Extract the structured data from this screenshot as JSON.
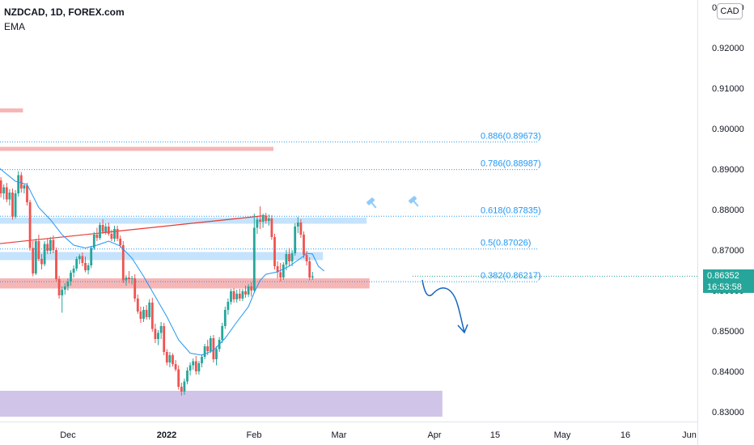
{
  "header": {
    "symbol": "NZDCAD, 1D, FOREX.com",
    "indicator": "EMA",
    "currency": "CAD"
  },
  "price_tag": {
    "price": "0.86352",
    "countdown": "16:53:58",
    "color": "#26a69a"
  },
  "colors": {
    "up": "#26a69a",
    "down": "#ef5350",
    "ema": "#2196f3",
    "trendline": "#e53935",
    "fib": "#2196f3",
    "resistance_zone": "#f5a9a9",
    "support_zone": "#bbdefb",
    "demand_zone": "#d1c4e9",
    "projection": "#1565c0"
  },
  "chart_data": {
    "type": "candlestick",
    "symbol": "NZDCAD",
    "timeframe": "1D",
    "y_axis": {
      "ticks": [
        "0.83000",
        "0.84000",
        "0.85000",
        "0.86000",
        "0.87000",
        "0.88000",
        "0.89000",
        "0.90000",
        "0.91000",
        "0.92000",
        "0.93000"
      ],
      "range": [
        0.8255,
        0.9305
      ]
    },
    "x_axis": {
      "ticks": [
        "Dec",
        "2022",
        "Feb",
        "Mar",
        "Apr",
        "15",
        "May",
        "16",
        "Jun"
      ]
    },
    "fib_levels": [
      {
        "label": "0.886(0.89673)",
        "value": 0.89673
      },
      {
        "label": "0.786(0.88987)",
        "value": 0.88987
      },
      {
        "label": "0.618(0.87835)",
        "value": 0.87835
      },
      {
        "label": "0.5(0.87026)",
        "value": 0.87026
      },
      {
        "label": "0.382(0.86217)",
        "value": 0.86217
      }
    ],
    "zones": [
      {
        "kind": "resistance",
        "y1": 0.905,
        "y2": 0.904,
        "x_end_bar": 9
      },
      {
        "kind": "resistance",
        "y1": 0.8955,
        "y2": 0.8945,
        "x_end_bar": 95
      },
      {
        "kind": "support",
        "y1": 0.878,
        "y2": 0.8765,
        "x_end_bar": 127
      },
      {
        "kind": "support",
        "y1": 0.8695,
        "y2": 0.8675,
        "x_end_bar": 112
      },
      {
        "kind": "resistance",
        "y1": 0.863,
        "y2": 0.8605,
        "x_end_bar": 128
      },
      {
        "kind": "demand",
        "y1": 0.8352,
        "y2": 0.8288,
        "x_end_bar": 153
      }
    ],
    "trendline": {
      "from": [
        0,
        0.8715
      ],
      "to": [
        92,
        0.8785
      ]
    },
    "last_price": 0.86352,
    "candles": [
      [
        0.8915,
        0.8922,
        0.8868,
        0.8872
      ],
      [
        0.8872,
        0.888,
        0.883,
        0.884
      ],
      [
        0.884,
        0.8862,
        0.8825,
        0.8855
      ],
      [
        0.8855,
        0.8866,
        0.8818,
        0.8825
      ],
      [
        0.8825,
        0.885,
        0.881,
        0.8842
      ],
      [
        0.8842,
        0.8852,
        0.8775,
        0.8782
      ],
      [
        0.8782,
        0.8848,
        0.8778,
        0.884
      ],
      [
        0.884,
        0.8895,
        0.8832,
        0.8885
      ],
      [
        0.8885,
        0.8893,
        0.8842,
        0.8852
      ],
      [
        0.8852,
        0.8865,
        0.884,
        0.886
      ],
      [
        0.886,
        0.8866,
        0.881,
        0.8818
      ],
      [
        0.8818,
        0.8824,
        0.8698,
        0.8705
      ],
      [
        0.8705,
        0.8722,
        0.8635,
        0.8642
      ],
      [
        0.8642,
        0.8728,
        0.8638,
        0.8722
      ],
      [
        0.8722,
        0.8738,
        0.8672,
        0.8678
      ],
      [
        0.8678,
        0.869,
        0.8652,
        0.8665
      ],
      [
        0.8665,
        0.8722,
        0.866,
        0.8715
      ],
      [
        0.8715,
        0.8728,
        0.869,
        0.8698
      ],
      [
        0.8698,
        0.8732,
        0.869,
        0.8725
      ],
      [
        0.8725,
        0.8736,
        0.8692,
        0.87
      ],
      [
        0.87,
        0.8706,
        0.8622,
        0.8628
      ],
      [
        0.8628,
        0.8636,
        0.858,
        0.8588
      ],
      [
        0.8588,
        0.861,
        0.8545,
        0.8602
      ],
      [
        0.8602,
        0.8618,
        0.859,
        0.861
      ],
      [
        0.861,
        0.863,
        0.86,
        0.8622
      ],
      [
        0.8622,
        0.865,
        0.8612,
        0.8644
      ],
      [
        0.8644,
        0.8662,
        0.8632,
        0.8654
      ],
      [
        0.8654,
        0.8684,
        0.8648,
        0.8678
      ],
      [
        0.8678,
        0.869,
        0.8665,
        0.8685
      ],
      [
        0.8685,
        0.8694,
        0.866,
        0.8668
      ],
      [
        0.8668,
        0.8684,
        0.8645,
        0.865
      ],
      [
        0.865,
        0.8668,
        0.864,
        0.8662
      ],
      [
        0.8662,
        0.871,
        0.8655,
        0.8705
      ],
      [
        0.8705,
        0.8745,
        0.87,
        0.8738
      ],
      [
        0.8738,
        0.8755,
        0.8722,
        0.873
      ],
      [
        0.873,
        0.8768,
        0.8725,
        0.8762
      ],
      [
        0.8762,
        0.8776,
        0.874,
        0.8745
      ],
      [
        0.8745,
        0.8766,
        0.8738,
        0.8758
      ],
      [
        0.8758,
        0.8768,
        0.8735,
        0.874
      ],
      [
        0.874,
        0.875,
        0.8722,
        0.8728
      ],
      [
        0.8728,
        0.876,
        0.872,
        0.8752
      ],
      [
        0.8752,
        0.876,
        0.8722,
        0.8728
      ],
      [
        0.8728,
        0.8736,
        0.8705,
        0.8712
      ],
      [
        0.8712,
        0.8722,
        0.8618,
        0.8625
      ],
      [
        0.8625,
        0.8638,
        0.8612,
        0.8632
      ],
      [
        0.8632,
        0.8648,
        0.8618,
        0.8628
      ],
      [
        0.8628,
        0.8636,
        0.8615,
        0.863
      ],
      [
        0.863,
        0.864,
        0.8572,
        0.858
      ],
      [
        0.858,
        0.859,
        0.8542,
        0.8548
      ],
      [
        0.8548,
        0.856,
        0.852,
        0.853
      ],
      [
        0.853,
        0.856,
        0.8522,
        0.8552
      ],
      [
        0.8552,
        0.8564,
        0.8528,
        0.8534
      ],
      [
        0.8534,
        0.8578,
        0.8528,
        0.857
      ],
      [
        0.857,
        0.8582,
        0.8498,
        0.8505
      ],
      [
        0.8505,
        0.8518,
        0.847,
        0.848
      ],
      [
        0.848,
        0.8502,
        0.8465,
        0.8495
      ],
      [
        0.8495,
        0.8522,
        0.848,
        0.8512
      ],
      [
        0.8512,
        0.852,
        0.844,
        0.8448
      ],
      [
        0.8448,
        0.8455,
        0.8415,
        0.8422
      ],
      [
        0.8422,
        0.8448,
        0.841,
        0.844
      ],
      [
        0.844,
        0.8445,
        0.8412,
        0.8418
      ],
      [
        0.8418,
        0.8428,
        0.84,
        0.8405
      ],
      [
        0.8405,
        0.8415,
        0.8355,
        0.8362
      ],
      [
        0.8362,
        0.8372,
        0.834,
        0.835
      ],
      [
        0.835,
        0.8382,
        0.8342,
        0.8375
      ],
      [
        0.8375,
        0.841,
        0.8368,
        0.8402
      ],
      [
        0.8402,
        0.8422,
        0.839,
        0.8415
      ],
      [
        0.8415,
        0.8432,
        0.8404,
        0.8425
      ],
      [
        0.8425,
        0.8438,
        0.8392,
        0.84
      ],
      [
        0.84,
        0.8426,
        0.8392,
        0.842
      ],
      [
        0.842,
        0.8442,
        0.841,
        0.8436
      ],
      [
        0.8436,
        0.8468,
        0.843,
        0.8462
      ],
      [
        0.8462,
        0.8478,
        0.844,
        0.845
      ],
      [
        0.845,
        0.8488,
        0.8445,
        0.8482
      ],
      [
        0.8482,
        0.849,
        0.8422,
        0.843
      ],
      [
        0.843,
        0.8462,
        0.8415,
        0.8455
      ],
      [
        0.8455,
        0.8485,
        0.8448,
        0.8478
      ],
      [
        0.8478,
        0.852,
        0.847,
        0.8512
      ],
      [
        0.8512,
        0.856,
        0.8505,
        0.8552
      ],
      [
        0.8552,
        0.858,
        0.854,
        0.8572
      ],
      [
        0.8572,
        0.8604,
        0.8565,
        0.8598
      ],
      [
        0.8598,
        0.8606,
        0.857,
        0.8578
      ],
      [
        0.8578,
        0.8602,
        0.857,
        0.8592
      ],
      [
        0.8592,
        0.8604,
        0.8574,
        0.858
      ],
      [
        0.858,
        0.8604,
        0.8574,
        0.8598
      ],
      [
        0.8598,
        0.8612,
        0.8582,
        0.859
      ],
      [
        0.859,
        0.8616,
        0.8584,
        0.861
      ],
      [
        0.861,
        0.862,
        0.8585,
        0.86
      ],
      [
        0.86,
        0.879,
        0.8595,
        0.8755
      ],
      [
        0.8755,
        0.8782,
        0.874,
        0.8775
      ],
      [
        0.8775,
        0.8808,
        0.8752,
        0.877
      ],
      [
        0.877,
        0.879,
        0.8755,
        0.8785
      ],
      [
        0.8785,
        0.8792,
        0.8765,
        0.8772
      ],
      [
        0.8772,
        0.8788,
        0.876,
        0.8778
      ],
      [
        0.8778,
        0.8786,
        0.8725,
        0.8732
      ],
      [
        0.8732,
        0.874,
        0.8652,
        0.866
      ],
      [
        0.866,
        0.8672,
        0.863,
        0.8645
      ],
      [
        0.8645,
        0.8668,
        0.8622,
        0.8632
      ],
      [
        0.8632,
        0.867,
        0.8626,
        0.8664
      ],
      [
        0.8664,
        0.87,
        0.865,
        0.869
      ],
      [
        0.869,
        0.8705,
        0.866,
        0.8672
      ],
      [
        0.8672,
        0.87,
        0.866,
        0.8692
      ],
      [
        0.8692,
        0.8766,
        0.8686,
        0.8758
      ],
      [
        0.8758,
        0.8782,
        0.8742,
        0.8768
      ],
      [
        0.8768,
        0.8776,
        0.873,
        0.8738
      ],
      [
        0.8738,
        0.8746,
        0.868,
        0.8688
      ],
      [
        0.8688,
        0.8698,
        0.8662,
        0.8672
      ],
      [
        0.8672,
        0.8682,
        0.8625,
        0.8632
      ],
      [
        0.8632,
        0.8646,
        0.8626,
        0.8635
      ]
    ],
    "ema": [
      [
        0,
        0.8905
      ],
      [
        6,
        0.887
      ],
      [
        10,
        0.8862
      ],
      [
        14,
        0.8805
      ],
      [
        18,
        0.8775
      ],
      [
        22,
        0.8738
      ],
      [
        26,
        0.8712
      ],
      [
        30,
        0.8705
      ],
      [
        34,
        0.8712
      ],
      [
        38,
        0.8722
      ],
      [
        42,
        0.871
      ],
      [
        46,
        0.868
      ],
      [
        50,
        0.8635
      ],
      [
        54,
        0.8585
      ],
      [
        58,
        0.8535
      ],
      [
        62,
        0.8478
      ],
      [
        66,
        0.8445
      ],
      [
        70,
        0.844
      ],
      [
        74,
        0.8452
      ],
      [
        78,
        0.8482
      ],
      [
        82,
        0.8522
      ],
      [
        86,
        0.856
      ],
      [
        88,
        0.8595
      ],
      [
        90,
        0.8625
      ],
      [
        92,
        0.864
      ],
      [
        96,
        0.8646
      ],
      [
        100,
        0.866
      ],
      [
        104,
        0.868
      ],
      [
        106,
        0.8692
      ],
      [
        108,
        0.869
      ],
      [
        110,
        0.866
      ],
      [
        112,
        0.8648
      ]
    ]
  }
}
